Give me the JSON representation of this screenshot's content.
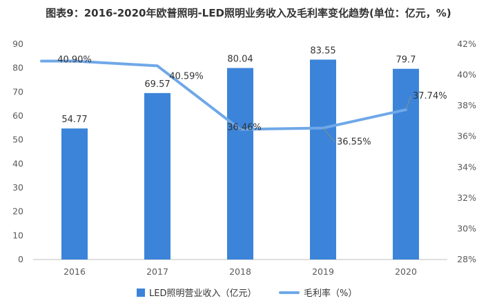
{
  "title": "图表9：2016-2020年欧普照明-LED照明业务收入及毛利率变化趋势(单位：亿元，%)",
  "chart_data": {
    "type": "bar",
    "title": "图表9：2016-2020年欧普照明-LED照明业务收入及毛利率变化趋势(单位：亿元，%)",
    "categories": [
      "2016",
      "2017",
      "2018",
      "2019",
      "2020"
    ],
    "series": [
      {
        "name": "LED照明营业收入（亿元）",
        "type": "bar",
        "axis": "left",
        "values": [
          54.77,
          69.57,
          80.04,
          83.55,
          79.7
        ],
        "labels": [
          "54.77",
          "69.57",
          "80.04",
          "83.55",
          "79.7"
        ]
      },
      {
        "name": "毛利率（%）",
        "type": "line",
        "axis": "right",
        "values": [
          40.9,
          40.59,
          36.46,
          36.55,
          37.74
        ],
        "labels": [
          "40.90%",
          "40.59%",
          "36.46%",
          "36.55%",
          "37.74%"
        ]
      }
    ],
    "y_left": {
      "min": 0,
      "max": 90,
      "step": 10,
      "ticks": [
        "0",
        "10",
        "20",
        "30",
        "40",
        "50",
        "60",
        "70",
        "80",
        "90"
      ]
    },
    "y_right": {
      "min": 28,
      "max": 42,
      "step": 2,
      "ticks": [
        "28%",
        "30%",
        "32%",
        "34%",
        "36%",
        "38%",
        "40%",
        "42%"
      ]
    },
    "grid": false,
    "legend": "bottom",
    "colors": {
      "bar": "#3b84d9",
      "line": "#6fa8e8",
      "axis": "#bfbfbf"
    }
  }
}
